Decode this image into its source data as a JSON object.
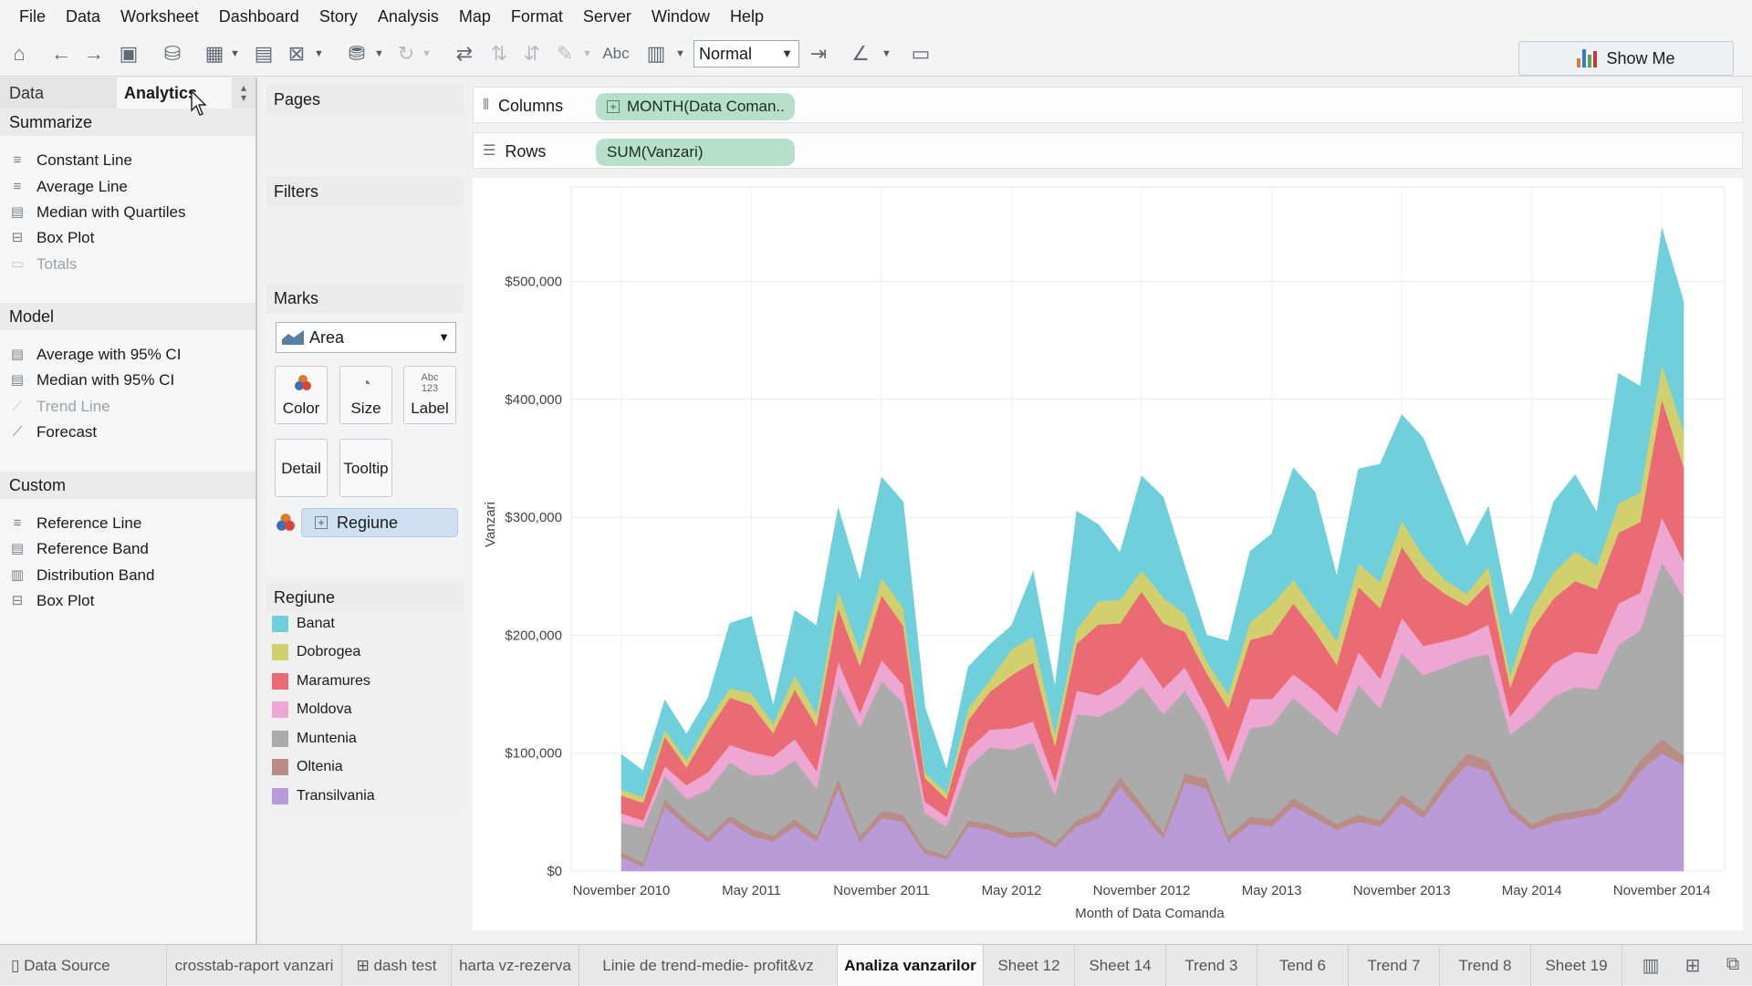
{
  "menu": [
    "File",
    "Data",
    "Worksheet",
    "Dashboard",
    "Story",
    "Analysis",
    "Map",
    "Format",
    "Server",
    "Window",
    "Help"
  ],
  "toolbar": {
    "fit_value": "Normal",
    "show_me_label": "Show Me",
    "abc_label": "Abc"
  },
  "left_panel": {
    "tab_data": "Data",
    "tab_analytics": "Analytics",
    "sections": [
      {
        "title": "Summarize",
        "items": [
          {
            "label": "Constant Line",
            "icon": "constant-line-icon",
            "enabled": true
          },
          {
            "label": "Average Line",
            "icon": "average-line-icon",
            "enabled": true
          },
          {
            "label": "Median with Quartiles",
            "icon": "median-quartiles-icon",
            "enabled": true
          },
          {
            "label": "Box Plot",
            "icon": "box-plot-icon",
            "enabled": true
          },
          {
            "label": "Totals",
            "icon": "totals-icon",
            "enabled": false
          }
        ]
      },
      {
        "title": "Model",
        "items": [
          {
            "label": "Average with 95% CI",
            "icon": "average-ci-icon",
            "enabled": true
          },
          {
            "label": "Median with 95% CI",
            "icon": "median-ci-icon",
            "enabled": true
          },
          {
            "label": "Trend Line",
            "icon": "trend-line-icon",
            "enabled": false
          },
          {
            "label": "Forecast",
            "icon": "forecast-icon",
            "enabled": true
          }
        ]
      },
      {
        "title": "Custom",
        "items": [
          {
            "label": "Reference Line",
            "icon": "reference-line-icon",
            "enabled": true
          },
          {
            "label": "Reference Band",
            "icon": "reference-band-icon",
            "enabled": true
          },
          {
            "label": "Distribution Band",
            "icon": "distribution-band-icon",
            "enabled": true
          },
          {
            "label": "Box Plot",
            "icon": "box-plot-icon",
            "enabled": true
          }
        ]
      }
    ]
  },
  "cards": {
    "pages": "Pages",
    "filters": "Filters",
    "marks": "Marks",
    "mark_type": "Area",
    "color": "Color",
    "size": "Size",
    "label": "Label",
    "label_icon_top": "Abc",
    "label_icon_bottom": "123",
    "detail": "Detail",
    "tooltip": "Tooltip",
    "color_field": "Regiune"
  },
  "legend": {
    "title": "Regiune",
    "items": [
      {
        "name": "Banat",
        "color": "#6fcfdb"
      },
      {
        "name": "Dobrogea",
        "color": "#d2cf6e"
      },
      {
        "name": "Maramures",
        "color": "#ea6b73"
      },
      {
        "name": "Moldova",
        "color": "#eea6d2"
      },
      {
        "name": "Muntenia",
        "color": "#ababab"
      },
      {
        "name": "Oltenia",
        "color": "#bb8c86"
      },
      {
        "name": "Transilvania",
        "color": "#b99bd8"
      }
    ]
  },
  "shelves": {
    "columns_label": "Columns",
    "columns_pill": "MONTH(Data Coman..",
    "rows_label": "Rows",
    "rows_pill": "SUM(Vanzari)"
  },
  "chart_data": {
    "type": "area",
    "stacked": true,
    "ylabel": "Vanzari",
    "xlabel": "Month of Data Comanda",
    "ylim": [
      0,
      580000
    ],
    "y_ticks": [
      "$0",
      "$100,000",
      "$200,000",
      "$300,000",
      "$400,000",
      "$500,000"
    ],
    "y_tick_values": [
      0,
      100000,
      200000,
      300000,
      400000,
      500000
    ],
    "x_ticks": [
      "November 2010",
      "May 2011",
      "November 2011",
      "May 2012",
      "November 2012",
      "May 2013",
      "November 2013",
      "May 2014",
      "November 2014"
    ],
    "x_tick_index": [
      0,
      6,
      12,
      18,
      24,
      30,
      36,
      42,
      48
    ],
    "x": [
      "Nov 2010",
      "Dec 2010",
      "Jan 2011",
      "Feb 2011",
      "Mar 2011",
      "Apr 2011",
      "May 2011",
      "Jun 2011",
      "Jul 2011",
      "Aug 2011",
      "Sep 2011",
      "Oct 2011",
      "Nov 2011",
      "Dec 2011",
      "Jan 2012",
      "Feb 2012",
      "Mar 2012",
      "Apr 2012",
      "May 2012",
      "Jun 2012",
      "Jul 2012",
      "Aug 2012",
      "Sep 2012",
      "Oct 2012",
      "Nov 2012",
      "Dec 2012",
      "Jan 2013",
      "Feb 2013",
      "Mar 2013",
      "Apr 2013",
      "May 2013",
      "Jun 2013",
      "Jul 2013",
      "Aug 2013",
      "Sep 2013",
      "Oct 2013",
      "Nov 2013",
      "Dec 2013",
      "Jan 2014",
      "Feb 2014",
      "Mar 2014",
      "Apr 2014",
      "May 2014",
      "Jun 2014",
      "Jul 2014",
      "Aug 2014",
      "Sep 2014",
      "Oct 2014",
      "Nov 2014",
      "Dec 2014"
    ],
    "grid": true,
    "series": [
      {
        "name": "Transilvania",
        "color": "#b99bd8",
        "values": [
          12000,
          4000,
          55000,
          38000,
          25000,
          42000,
          30000,
          25000,
          38000,
          25000,
          70000,
          25000,
          45000,
          42000,
          15000,
          10000,
          38000,
          35000,
          28000,
          30000,
          20000,
          38000,
          45000,
          72000,
          50000,
          28000,
          75000,
          70000,
          25000,
          40000,
          38000,
          55000,
          45000,
          35000,
          42000,
          38000,
          58000,
          45000,
          70000,
          90000,
          85000,
          50000,
          35000,
          42000,
          45000,
          48000,
          60000,
          85000,
          100000,
          90000
        ]
      },
      {
        "name": "Oltenia",
        "color": "#bb8c86",
        "values": [
          4000,
          3000,
          6000,
          5000,
          4000,
          5000,
          6000,
          5000,
          6000,
          5000,
          8000,
          5000,
          6000,
          6000,
          4000,
          3000,
          5000,
          5000,
          5000,
          4000,
          4000,
          5000,
          6000,
          8000,
          7000,
          5000,
          8000,
          8000,
          5000,
          6000,
          6000,
          7000,
          6000,
          5000,
          6000,
          5000,
          7000,
          6000,
          8000,
          10000,
          9000,
          6000,
          5000,
          6000,
          6000,
          6000,
          7000,
          9000,
          12000,
          8000
        ]
      },
      {
        "name": "Muntenia",
        "color": "#ababab",
        "values": [
          25000,
          30000,
          20000,
          18000,
          40000,
          45000,
          45000,
          52000,
          50000,
          40000,
          80000,
          92000,
          110000,
          95000,
          30000,
          25000,
          45000,
          65000,
          70000,
          75000,
          40000,
          90000,
          80000,
          60000,
          100000,
          100000,
          70000,
          45000,
          45000,
          75000,
          80000,
          85000,
          80000,
          75000,
          110000,
          95000,
          120000,
          115000,
          95000,
          80000,
          90000,
          60000,
          90000,
          100000,
          105000,
          100000,
          125000,
          110000,
          150000,
          135000
        ]
      },
      {
        "name": "Moldova",
        "color": "#eea6d2",
        "values": [
          8000,
          6000,
          8000,
          12000,
          15000,
          15000,
          20000,
          15000,
          18000,
          15000,
          20000,
          12000,
          18000,
          15000,
          10000,
          8000,
          15000,
          15000,
          18000,
          18000,
          12000,
          20000,
          18000,
          20000,
          25000,
          22000,
          20000,
          15000,
          18000,
          25000,
          22000,
          20000,
          22000,
          20000,
          28000,
          25000,
          30000,
          25000,
          22000,
          20000,
          25000,
          15000,
          25000,
          28000,
          30000,
          30000,
          35000,
          32000,
          38000,
          30000
        ]
      },
      {
        "name": "Maramures",
        "color": "#ea6b73",
        "values": [
          15000,
          15000,
          25000,
          15000,
          35000,
          40000,
          40000,
          20000,
          42000,
          38000,
          45000,
          40000,
          55000,
          50000,
          20000,
          15000,
          25000,
          32000,
          45000,
          50000,
          30000,
          40000,
          60000,
          50000,
          55000,
          55000,
          30000,
          30000,
          45000,
          50000,
          55000,
          60000,
          50000,
          40000,
          55000,
          60000,
          60000,
          58000,
          40000,
          25000,
          35000,
          25000,
          50000,
          55000,
          60000,
          55000,
          60000,
          60000,
          100000,
          80000
        ]
      },
      {
        "name": "Dobrogea",
        "color": "#d2cf6e",
        "values": [
          5000,
          5000,
          6000,
          6000,
          8000,
          8000,
          10000,
          8000,
          12000,
          10000,
          15000,
          12000,
          15000,
          15000,
          5000,
          5000,
          10000,
          10000,
          22000,
          22000,
          10000,
          12000,
          20000,
          20000,
          18000,
          22000,
          15000,
          10000,
          12000,
          15000,
          25000,
          20000,
          18000,
          20000,
          20000,
          22000,
          22000,
          18000,
          12000,
          10000,
          15000,
          10000,
          18000,
          22000,
          25000,
          20000,
          25000,
          25000,
          30000,
          30000
        ]
      },
      {
        "name": "Banat",
        "color": "#6fcfdb",
        "values": [
          30000,
          22000,
          25000,
          22000,
          20000,
          55000,
          65000,
          15000,
          55000,
          75000,
          70000,
          60000,
          85000,
          90000,
          55000,
          20000,
          35000,
          30000,
          20000,
          55000,
          40000,
          100000,
          65000,
          40000,
          80000,
          85000,
          40000,
          22000,
          45000,
          60000,
          60000,
          95000,
          100000,
          55000,
          80000,
          100000,
          90000,
          100000,
          75000,
          40000,
          50000,
          50000,
          25000,
          60000,
          65000,
          45000,
          110000,
          90000,
          115000,
          110000
        ]
      }
    ]
  },
  "bottom_tabs": [
    {
      "label": "Data Source",
      "active": false
    },
    {
      "label": "crosstab-raport vanzari",
      "active": false
    },
    {
      "label": "dash test",
      "active": false
    },
    {
      "label": "harta vz-rezerva",
      "active": false
    },
    {
      "label": "Linie de trend-medie- profit&vz",
      "active": false
    },
    {
      "label": "Analiza vanzarilor",
      "active": true
    },
    {
      "label": "Sheet 12",
      "active": false
    },
    {
      "label": "Sheet 14",
      "active": false
    },
    {
      "label": "Trend 3",
      "active": false
    },
    {
      "label": "Tend 6",
      "active": false
    },
    {
      "label": "Trend 7",
      "active": false
    },
    {
      "label": "Trend 8",
      "active": false
    },
    {
      "label": "Sheet 19",
      "active": false
    }
  ]
}
